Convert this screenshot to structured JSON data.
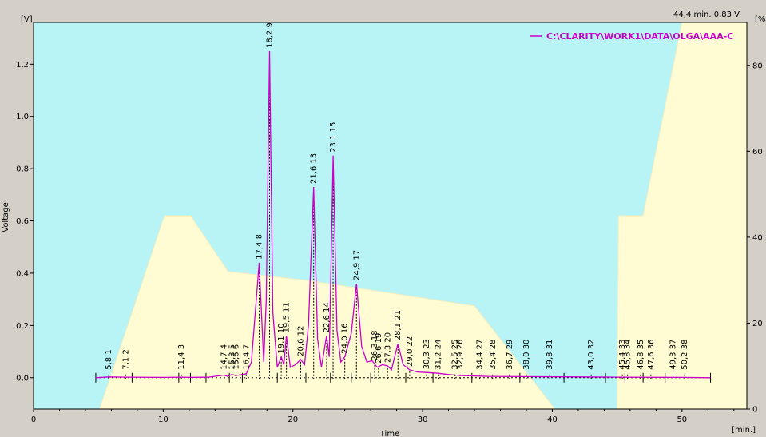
{
  "chart_data": {
    "type": "line",
    "readout": "44,4 min.  0,83 V",
    "y_unit_left": "[V]",
    "y_unit_right": "[%",
    "x_unit": "[min.]",
    "xlabel": "Time",
    "ylabel": "Voltage",
    "xlim": [
      0,
      55
    ],
    "ylim": [
      -0.12,
      1.36
    ],
    "y2lim": [
      0,
      90
    ],
    "x_ticks": [
      0,
      10,
      20,
      30,
      40,
      50
    ],
    "y_ticks": [
      0.0,
      0.2,
      0.4,
      0.6,
      0.8,
      1.0,
      1.2
    ],
    "y_tick_labels": [
      "0,0",
      "0,2",
      "0,4",
      "0,6",
      "0,8",
      "1,0",
      "1,2"
    ],
    "y2_ticks": [
      0,
      20,
      40,
      60,
      80
    ],
    "legend": "C:\\CLARITY\\WORK1\\DATA\\OLGA\\AAA-C",
    "colors": {
      "plot_bg": "#fffbd2",
      "gradient_fill": "#b8f4f6",
      "trace": "#cc00cc",
      "frame": "#d4d0c8"
    },
    "gradient_profile": {
      "x": [
        0,
        5.1,
        10.1,
        12.1,
        15.0,
        21.0,
        34.0,
        40.2,
        43.2,
        45.0,
        45.1,
        47.0,
        48.0,
        50.0,
        55
      ],
      "y": [
        0,
        0,
        45,
        45,
        32,
        30,
        24,
        0,
        0,
        0,
        45,
        45,
        60,
        92,
        100
      ]
    },
    "series": [
      {
        "x": [
          4.8,
          5.8,
          7.1,
          10,
          11.4,
          12,
          13.5,
          14.7,
          14.95,
          15.3,
          15.6,
          16.1,
          16.4,
          16.8,
          17.1,
          17.4,
          17.75,
          17.95,
          18.2,
          18.45,
          18.8,
          19.1,
          19.3,
          19.5,
          19.8,
          20.2,
          20.6,
          20.9,
          21.2,
          21.6,
          21.9,
          22.2,
          22.6,
          22.8,
          23.1,
          23.4,
          23.7,
          24.0,
          24.5,
          24.9,
          25.3,
          25.7,
          26.1,
          26.5,
          26.9,
          27.3,
          27.6,
          28.1,
          28.5,
          29.0,
          29.6,
          30.3,
          31.2,
          32.0,
          33.0,
          35.0,
          38.0,
          42.0,
          45.0,
          50.0,
          52.2
        ],
        "y": [
          0.0,
          0.003,
          0.002,
          0.001,
          0.002,
          0.001,
          0.002,
          0.01,
          0.005,
          0.012,
          0.008,
          0.012,
          0.015,
          0.06,
          0.25,
          0.44,
          0.06,
          0.3,
          1.25,
          0.25,
          0.04,
          0.08,
          0.05,
          0.16,
          0.04,
          0.05,
          0.07,
          0.05,
          0.2,
          0.73,
          0.15,
          0.04,
          0.16,
          0.08,
          0.85,
          0.18,
          0.06,
          0.08,
          0.17,
          0.36,
          0.12,
          0.06,
          0.065,
          0.04,
          0.05,
          0.045,
          0.03,
          0.13,
          0.05,
          0.03,
          0.022,
          0.02,
          0.017,
          0.012,
          0.008,
          0.005,
          0.004,
          0.003,
          0.002,
          0.001,
          0.0
        ]
      }
    ],
    "peaks": [
      {
        "rt": "5,8",
        "n": "1"
      },
      {
        "rt": "7,1",
        "n": "2"
      },
      {
        "rt": "11,4",
        "n": "3"
      },
      {
        "rt": "14,7",
        "n": "4"
      },
      {
        "rt": "15,3",
        "n": "5"
      },
      {
        "rt": "15,6",
        "n": "6"
      },
      {
        "rt": "16,4",
        "n": "7"
      },
      {
        "rt": "17,4",
        "n": "8"
      },
      {
        "rt": "18,2",
        "n": "9"
      },
      {
        "rt": "19,1",
        "n": "10"
      },
      {
        "rt": "19,5",
        "n": "11"
      },
      {
        "rt": "20,6",
        "n": "12"
      },
      {
        "rt": "21,6",
        "n": "13"
      },
      {
        "rt": "22,6",
        "n": "14"
      },
      {
        "rt": "23,1",
        "n": "15"
      },
      {
        "rt": "24,0",
        "n": "16"
      },
      {
        "rt": "24,9",
        "n": "17"
      },
      {
        "rt": "26,3",
        "n": "18"
      },
      {
        "rt": "26,6",
        "n": "19"
      },
      {
        "rt": "27,3",
        "n": "20"
      },
      {
        "rt": "28,1",
        "n": "21"
      },
      {
        "rt": "29,0",
        "n": "22"
      },
      {
        "rt": "30,3",
        "n": "23"
      },
      {
        "rt": "31,2",
        "n": "24"
      },
      {
        "rt": "32,5",
        "n": "25"
      },
      {
        "rt": "32,9",
        "n": "26"
      },
      {
        "rt": "34,4",
        "n": "27"
      },
      {
        "rt": "35,4",
        "n": "28"
      },
      {
        "rt": "36,7",
        "n": "29"
      },
      {
        "rt": "38,0",
        "n": "30"
      },
      {
        "rt": "39,8",
        "n": "31"
      },
      {
        "rt": "43,0",
        "n": "32"
      },
      {
        "rt": "45,4",
        "n": "33"
      },
      {
        "rt": "45,8",
        "n": "34"
      },
      {
        "rt": "46,8",
        "n": "35"
      },
      {
        "rt": "47,6",
        "n": "36"
      },
      {
        "rt": "49,3",
        "n": "37"
      },
      {
        "rt": "50,2",
        "n": "38"
      }
    ]
  }
}
